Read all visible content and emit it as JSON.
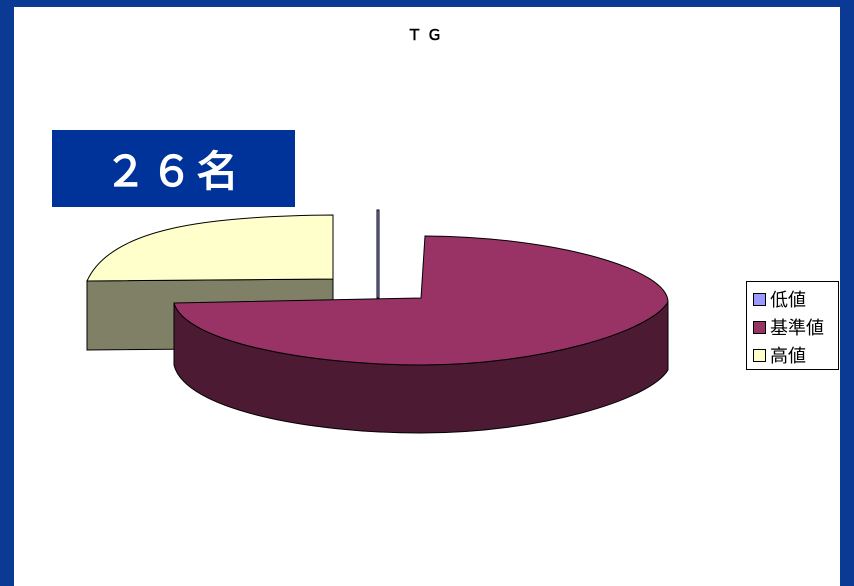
{
  "badge_text": "２６名",
  "chart_data": {
    "type": "pie",
    "title": "ＴＧ",
    "series": [
      {
        "name": "低値",
        "value": 0,
        "color": "#9999ff"
      },
      {
        "name": "基準値",
        "value": 19,
        "color": "#993366"
      },
      {
        "name": "高値",
        "value": 7,
        "color": "#ffffcc"
      }
    ],
    "exploded": true,
    "three_d": true,
    "legend_position": "right"
  }
}
